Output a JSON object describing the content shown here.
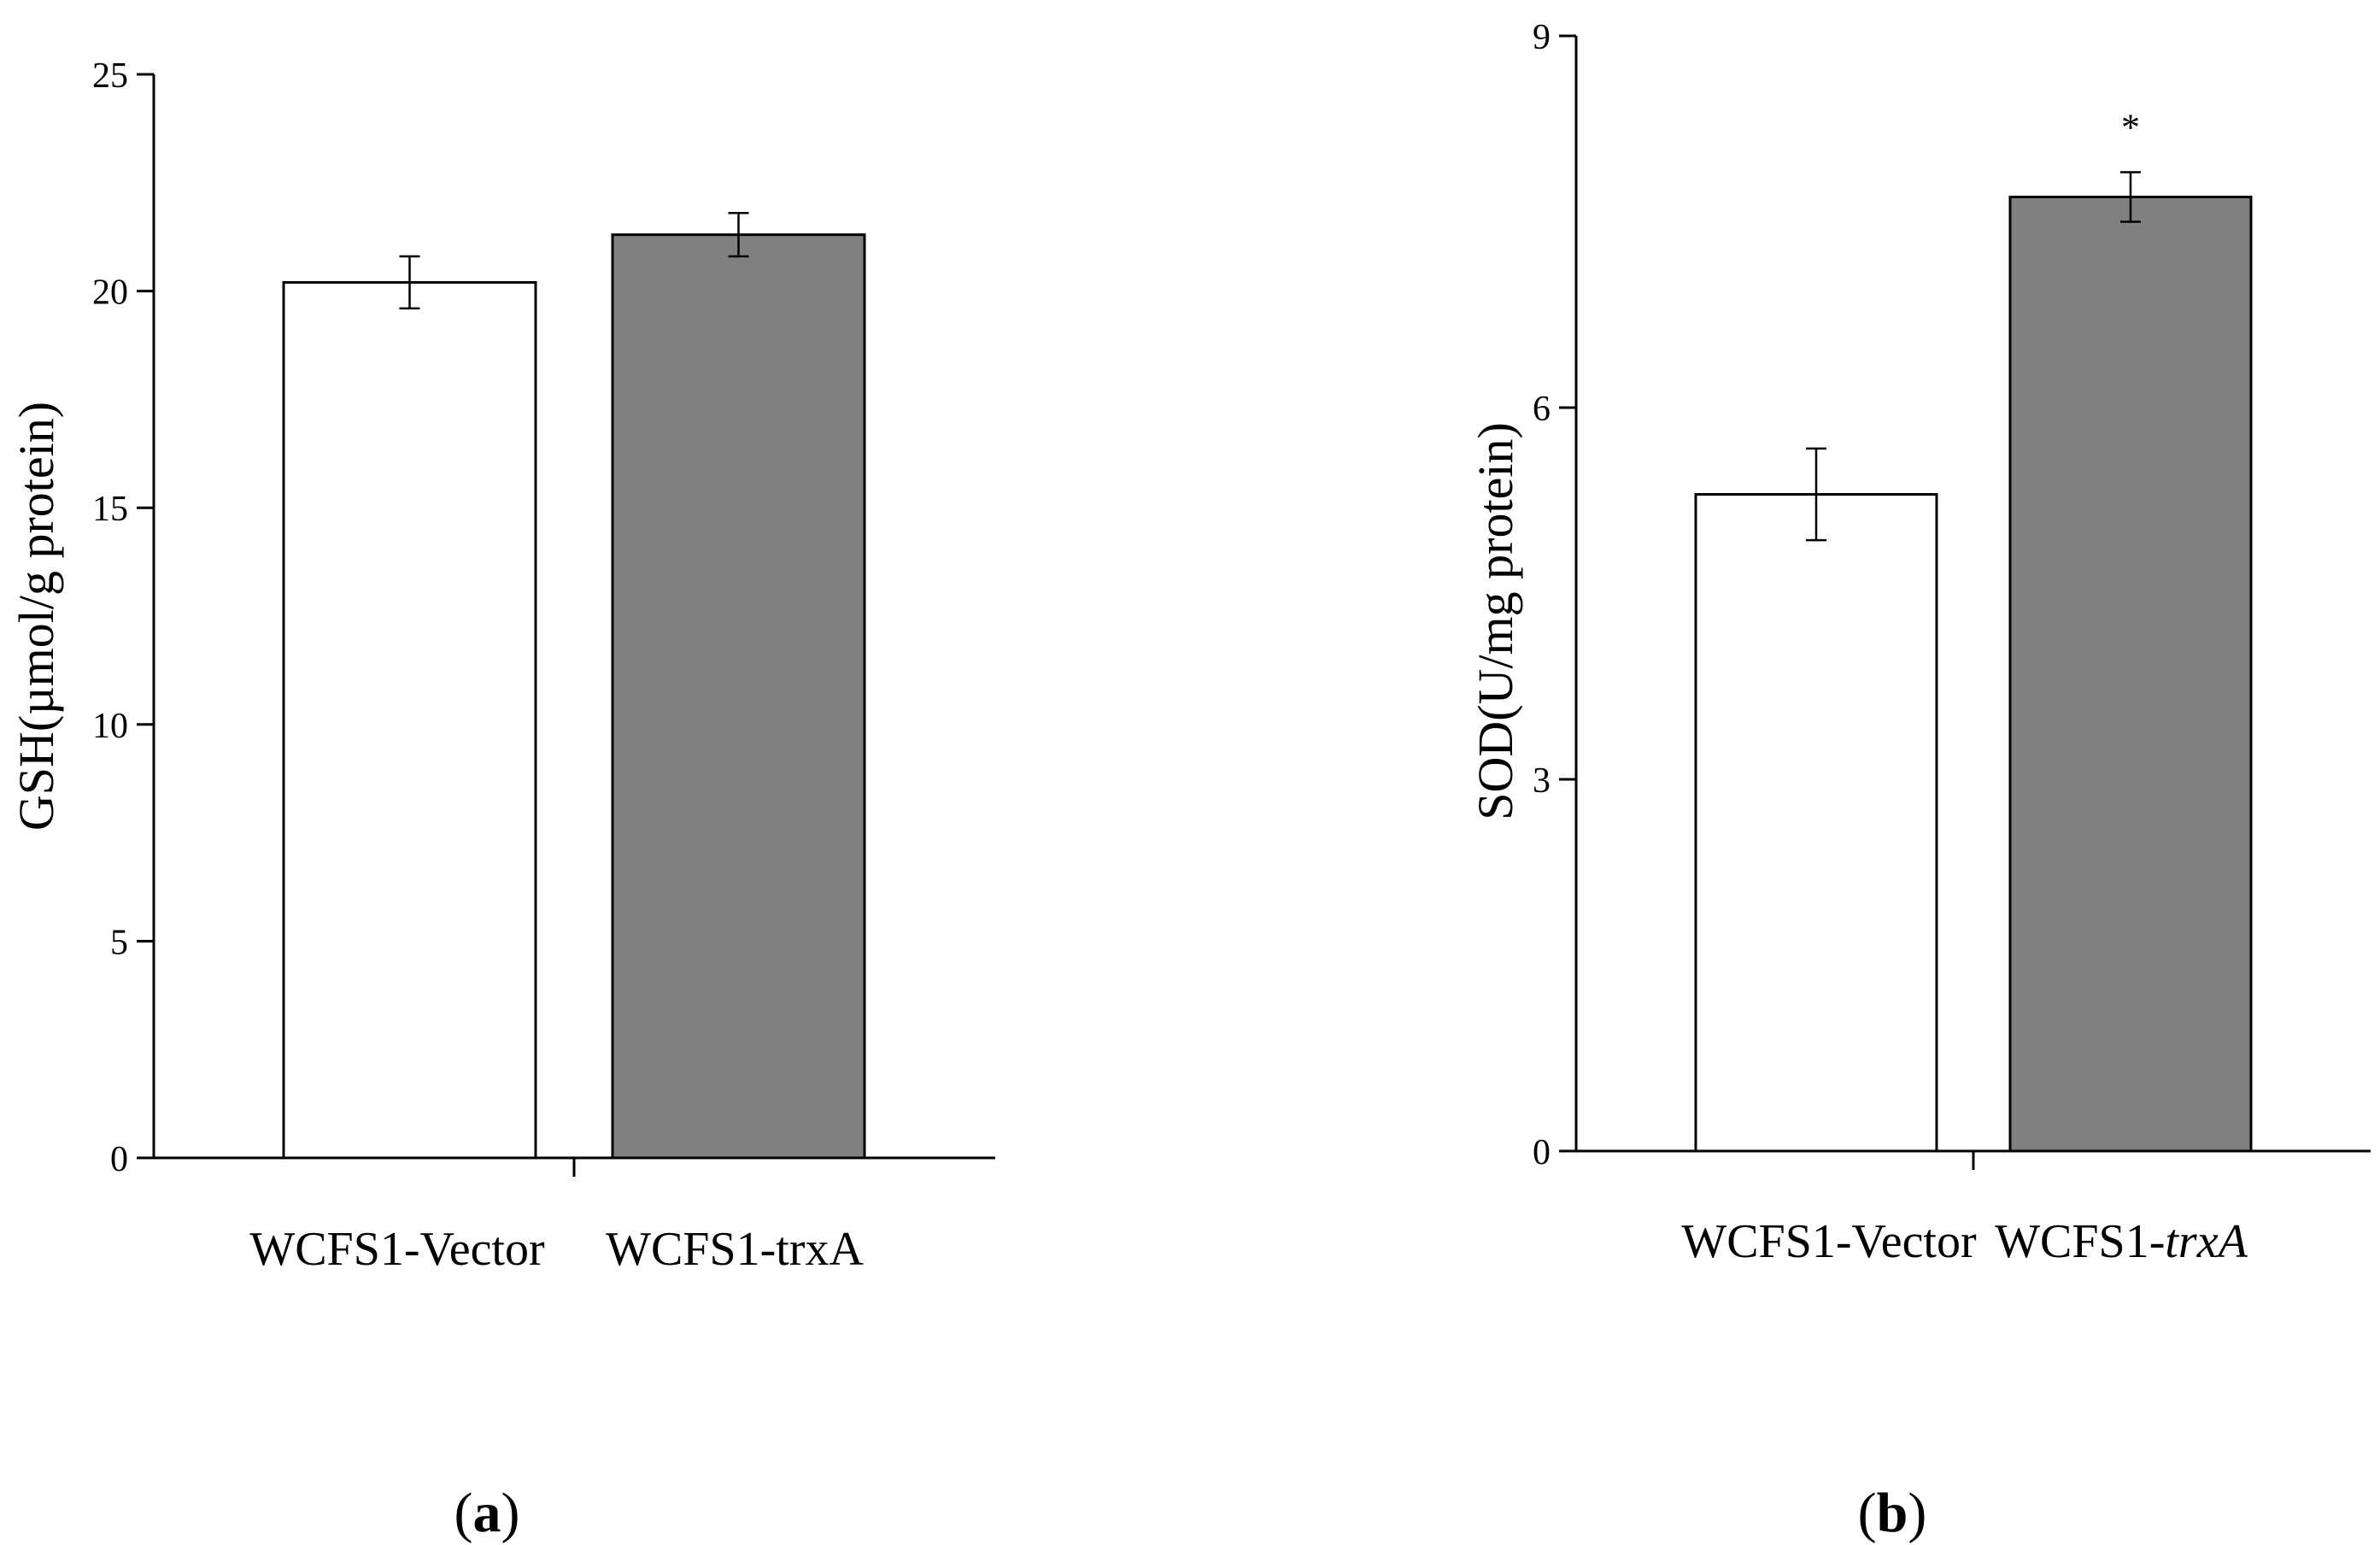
{
  "chart_data": [
    {
      "type": "bar",
      "panel_label": "a",
      "title": "",
      "xlabel": "",
      "ylabel": "GSH(µmol/g protein)",
      "ylim": [
        0,
        25
      ],
      "yticks": [
        0,
        5,
        10,
        15,
        20,
        25
      ],
      "categories": [
        "WCFS1-Vector",
        "WCFS1-trxA"
      ],
      "category_italic": [
        false,
        false
      ],
      "values": [
        20.2,
        21.3
      ],
      "errors": [
        0.6,
        0.5
      ],
      "bar_colors": [
        "#ffffff",
        "#808080"
      ],
      "annotations": [
        "",
        ""
      ]
    },
    {
      "type": "bar",
      "panel_label": "b",
      "title": "",
      "xlabel": "",
      "ylabel": "SOD(U/mg protein)",
      "ylim": [
        0,
        9
      ],
      "yticks": [
        0,
        3,
        6,
        9
      ],
      "categories": [
        "WCFS1-Vector",
        "WCFS1-trxA"
      ],
      "category_italic": [
        false,
        true
      ],
      "values": [
        5.3,
        7.7
      ],
      "errors": [
        0.37,
        0.2
      ],
      "bar_colors": [
        "#ffffff",
        "#808080"
      ],
      "annotations": [
        "",
        "*"
      ]
    }
  ]
}
